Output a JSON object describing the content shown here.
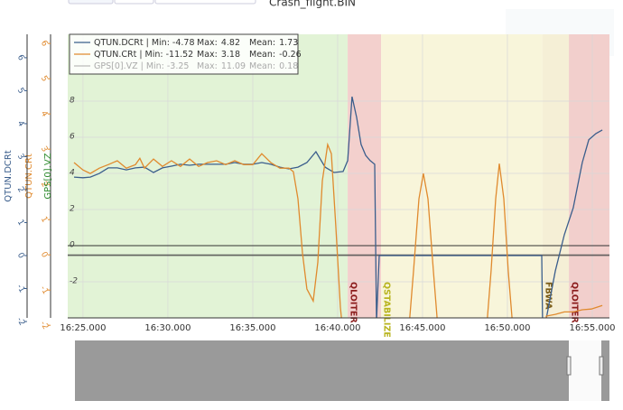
{
  "chart_data": {
    "type": "line",
    "title": "Crash_flight.BIN",
    "xlim": [
      984.1,
      1016.01
    ],
    "xticks": [
      {
        "value": 985,
        "label": "16:25.000"
      },
      {
        "value": 990,
        "label": "16:30.000"
      },
      {
        "value": 995,
        "label": "16:35.000"
      },
      {
        "value": 1000,
        "label": "16:40.000"
      },
      {
        "value": 1005,
        "label": "16:45.000"
      },
      {
        "value": 1010,
        "label": "16:50.000"
      },
      {
        "value": 1015,
        "label": "16:55.000"
      }
    ],
    "ylabel": "GPS[0].VZ",
    "ylim": [
      -4.0,
      11.7
    ],
    "yticks": [
      -2,
      0,
      2,
      4,
      6,
      8
    ],
    "y2label": "QTUN.CRt",
    "y2lim": [
      -1.79,
      6.26
    ],
    "y2ticks": [
      -2,
      -1,
      0,
      1,
      2,
      3,
      4,
      5,
      6
    ],
    "y3label": "QTUN.DCRt",
    "y3lim": [
      -1.89,
      6.71
    ],
    "y3ticks": [
      -2,
      -1,
      0,
      1,
      2,
      3,
      4,
      5,
      6
    ],
    "grid": true,
    "legend_position": "upper left",
    "legend_separator": "|",
    "legend_stat_labels": [
      "Min:",
      "Max:",
      "Mean:"
    ],
    "regions": [
      {
        "start": 984.1,
        "end": 1000.59,
        "color": "#e2f3d6"
      },
      {
        "label": "QLOITER",
        "start": 1000.59,
        "end": 1002.56,
        "color": "#f3d0cd",
        "label_color": "#8b1c1c"
      },
      {
        "label": "QSTABILIZE",
        "start": 1002.56,
        "end": 1012.07,
        "color": "#f8f5da",
        "label_color": "#b8b41e"
      },
      {
        "label": "FBWA",
        "start": 1012.07,
        "end": 1013.62,
        "color": "#f5efd6",
        "label_color": "#7a5a14"
      },
      {
        "label": "QLOITER",
        "start": 1013.62,
        "end": 1016.01,
        "color": "#f2cfcc",
        "label_color": "#8b1c1c"
      }
    ],
    "series": [
      {
        "name": "QTUN.DCRt",
        "color": "#3b5e8c",
        "axis": "y3",
        "visible": true,
        "stats": [
          -4.78,
          4.82,
          1.73
        ],
        "x": [
          984.47,
          985,
          985.43,
          985.96,
          986.49,
          987.02,
          987.55,
          988.09,
          988.62,
          989.15,
          989.68,
          990.21,
          990.74,
          991.28,
          991.81,
          992.34,
          992.87,
          993.4,
          993.94,
          994.47,
          995,
          995.53,
          996.06,
          996.6,
          997.13,
          997.66,
          998.19,
          998.72,
          999.26,
          999.79,
          1000.32,
          1000.59,
          1000.85,
          1001.12,
          1001.38,
          1001.65,
          1001.91,
          1002.18,
          1002.29,
          1002.45,
          1012.02,
          1012.07,
          1012.29,
          1012.82,
          1013.35,
          1013.88,
          1014.41,
          1014.79,
          1015.21,
          1015.59
        ],
        "values": [
          2.38,
          2.36,
          2.38,
          2.49,
          2.66,
          2.66,
          2.6,
          2.66,
          2.68,
          2.52,
          2.66,
          2.71,
          2.77,
          2.74,
          2.77,
          2.77,
          2.77,
          2.77,
          2.82,
          2.77,
          2.77,
          2.82,
          2.77,
          2.68,
          2.63,
          2.68,
          2.82,
          3.15,
          2.68,
          2.52,
          2.55,
          2.88,
          4.82,
          4.19,
          3.37,
          3.04,
          2.88,
          2.77,
          -2,
          0,
          0,
          -2,
          -1.9,
          -0.47,
          0.63,
          1.45,
          2.82,
          3.51,
          3.7,
          3.81
        ]
      },
      {
        "name": "QTUN.CRt",
        "color": "#e08a2e",
        "axis": "y2",
        "visible": true,
        "stats": [
          -11.52,
          3.18,
          -0.26
        ],
        "x": [
          984.47,
          985,
          985.43,
          985.96,
          986.49,
          987.02,
          987.55,
          988.09,
          988.35,
          988.62,
          989.15,
          989.68,
          990.21,
          990.74,
          991.28,
          991.81,
          992.34,
          992.87,
          993.4,
          993.94,
          994.47,
          995,
          995.53,
          996.06,
          996.6,
          997.13,
          997.39,
          997.66,
          997.93,
          998.19,
          998.56,
          998.83,
          999.1,
          999.41,
          999.63,
          999.89,
          1000.16,
          1000.48,
          1004.04,
          1004.47,
          1004.79,
          1005.05,
          1005.32,
          1005.64,
          1006.06,
          1008.62,
          1009.04,
          1009.31,
          1009.52,
          1009.79,
          1010.05,
          1010.48,
          1012.02,
          1012.29,
          1012.82,
          1013.35,
          1013.88,
          1014.41,
          1014.94,
          1015.59
        ],
        "values": [
          2.62,
          2.41,
          2.31,
          2.46,
          2.56,
          2.67,
          2.46,
          2.56,
          2.74,
          2.46,
          2.72,
          2.51,
          2.67,
          2.51,
          2.72,
          2.51,
          2.62,
          2.67,
          2.56,
          2.67,
          2.56,
          2.56,
          2.87,
          2.62,
          2.46,
          2.46,
          2.36,
          1.59,
          0.05,
          -0.97,
          -1.31,
          -0.21,
          2.1,
          3.13,
          2.87,
          0.82,
          -1.49,
          -3.03,
          -3.03,
          -0.46,
          1.59,
          2.31,
          1.59,
          -0.46,
          -3.03,
          -3.03,
          -0.46,
          1.59,
          2.59,
          1.59,
          -0.46,
          -3.03,
          -3.03,
          -1.74,
          -1.69,
          -1.62,
          -1.62,
          -1.56,
          -1.54,
          -1.44
        ]
      },
      {
        "name": "GPS[0].VZ",
        "color": "#2e8b2e",
        "axis": "y",
        "visible": false,
        "stats": [
          -3.25,
          11.09,
          0.18
        ]
      }
    ]
  }
}
